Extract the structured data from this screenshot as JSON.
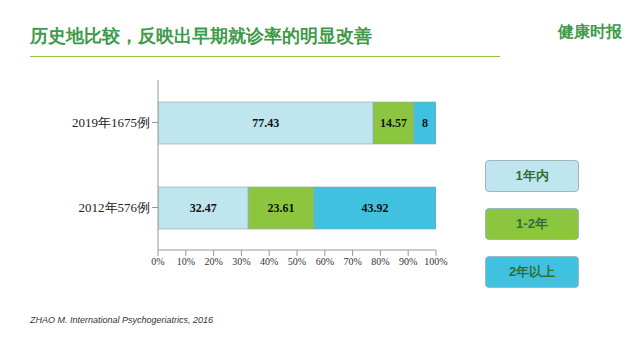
{
  "chart_data": {
    "type": "bar",
    "title": "历史地比较，反映出早期就诊率的明显改善",
    "orientation": "horizontal",
    "stacked": true,
    "data_labels": true,
    "grid": false,
    "legend": "right",
    "categories": [
      "2019年1675例",
      "2012年576例"
    ],
    "series": [
      {
        "name": "1年内",
        "color": "#bfe6ee",
        "values": [
          77.43,
          32.47
        ]
      },
      {
        "name": "1-2年",
        "color": "#8cc63e",
        "values": [
          14.57,
          23.61
        ]
      },
      {
        "name": "2年以上",
        "color": "#3fc1df",
        "values": [
          8,
          43.92
        ]
      }
    ],
    "xlim": [
      0,
      100
    ],
    "xticks": [
      {
        "value": 0,
        "label": "0%"
      },
      {
        "value": 10,
        "label": "10%"
      },
      {
        "value": 20,
        "label": "20%"
      },
      {
        "value": 30,
        "label": "30%"
      },
      {
        "value": 40,
        "label": "40%"
      },
      {
        "value": 50,
        "label": "50%"
      },
      {
        "value": 60,
        "label": "60%"
      },
      {
        "value": 70,
        "label": "70%"
      },
      {
        "value": 80,
        "label": "80%"
      },
      {
        "value": 90,
        "label": "90%"
      },
      {
        "value": 100,
        "label": "100%"
      }
    ],
    "source": "ZHAO M. International Psychogeriatrics, 2016",
    "brand": "健康时报"
  }
}
